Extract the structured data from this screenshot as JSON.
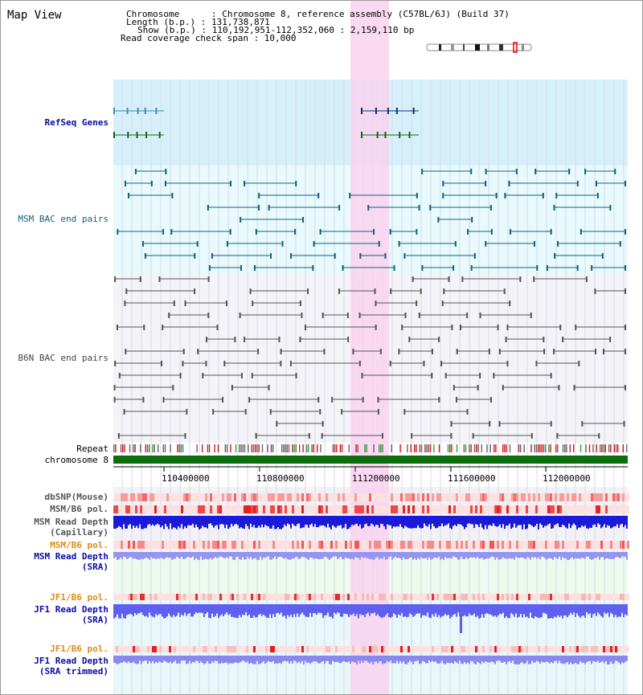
{
  "title": "Map View",
  "header": {
    "line1": "Chromosome      : Chromosome 8, reference assembly (C57BL/6J) (Build 37)",
    "line2": "Length (b.p.) : 131,738,871",
    "line3": "Show (b.p.) : 110,192,951-112,352,060 : 2,159,110 bp",
    "line4": "Read coverage check span : 10,000"
  },
  "tracks": {
    "refseq": "RefSeq Genes",
    "msm_bac": "MSM BAC end pairs",
    "b6n_bac": "B6N BAC end pairs",
    "repeat": "Repeat",
    "chromosome": "chromosome 8",
    "dbsnp": "dbSNP(Mouse)",
    "msm_pol": "MSM/B6 pol.",
    "msm_depth_cap_1": "MSM Read Depth",
    "msm_depth_cap_2": "(Capillary)",
    "msm_pol_2": "MSM/B6 pol.",
    "msm_depth_sra_1": "MSM Read Depth",
    "msm_depth_sra_2": "(SRA)",
    "jf1_pol": "JF1/B6 pol.",
    "jf1_depth_1": "JF1 Read Depth",
    "jf1_depth_2": "(SRA)",
    "jf1_pol_2": "JF1/B6 pol.",
    "jf1_trim_1": "JF1 Read Depth",
    "jf1_trim_2": "(SRA trimmed)"
  },
  "axis": {
    "ticks": [
      "110400000",
      "110800000",
      "111200000",
      "111600000",
      "112000000"
    ]
  },
  "colors": {
    "refseq_bg": "#d6f0fb",
    "bac_bg": "#e8fafc",
    "highlight": "#f9d2ef",
    "gene_dark": "#0a3171",
    "gene_mid": "#3f8db5",
    "gene_green": "#0a6b10",
    "msm_bac": "#11617d",
    "b6n_bac": "#555555",
    "chrom": "#0d6e0d"
  }
}
